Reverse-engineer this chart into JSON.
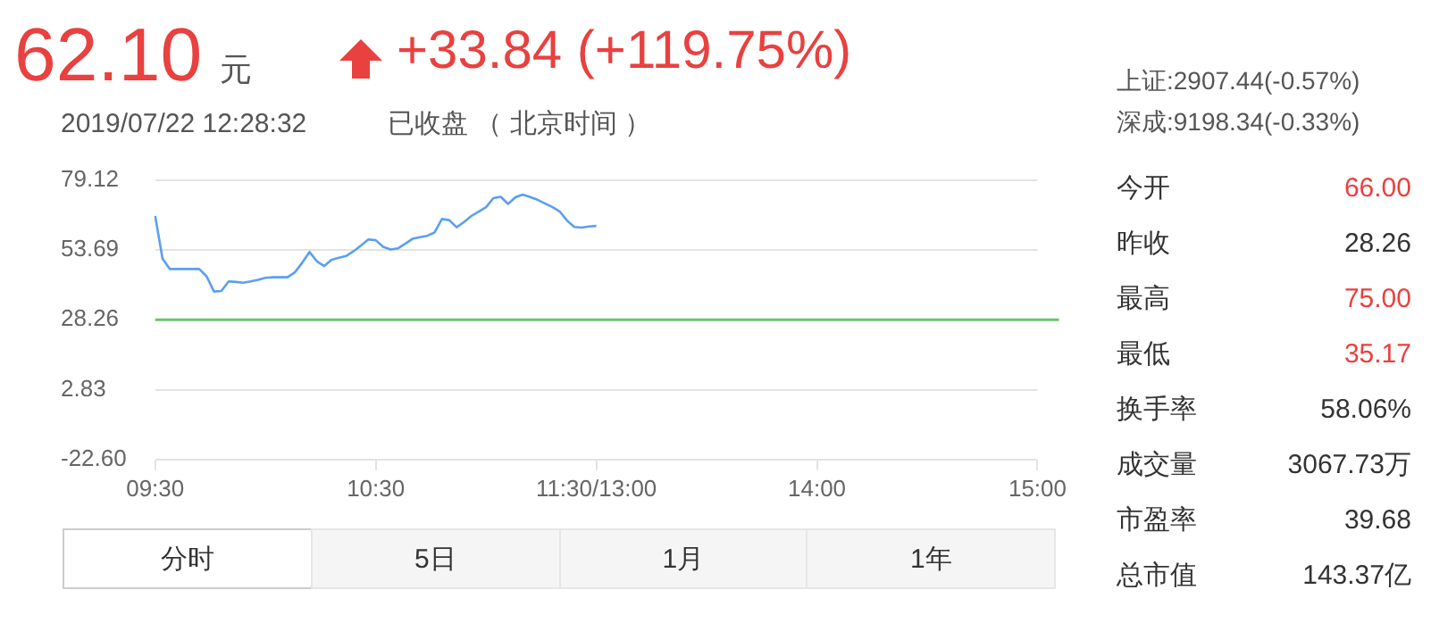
{
  "chart_data": {
    "type": "line",
    "categories": [
      "09:30",
      null,
      null,
      null,
      null,
      null,
      null,
      null,
      null,
      null,
      null,
      null,
      null,
      null,
      null,
      null,
      null,
      null,
      null,
      null,
      null,
      null,
      null,
      null,
      null,
      null,
      null,
      null,
      null,
      null,
      "10:30",
      null,
      null,
      null,
      null,
      null,
      null,
      null,
      null,
      null,
      null,
      null,
      null,
      null,
      null,
      null,
      null,
      null,
      null,
      null,
      null,
      null,
      null,
      null,
      null,
      null,
      null,
      null,
      null,
      null,
      "11:30/13:00",
      null,
      null,
      null,
      null,
      null,
      null,
      null,
      null,
      null,
      null,
      null,
      null,
      null,
      null,
      null,
      null,
      null,
      null,
      null,
      null,
      null,
      null,
      null,
      null,
      null,
      null,
      null,
      null,
      null,
      "14:00",
      null,
      null,
      null,
      null,
      null,
      null,
      null,
      null,
      null,
      null,
      null,
      null,
      null,
      null,
      null,
      null,
      null,
      null,
      null,
      null,
      null,
      null,
      null,
      null,
      null,
      null,
      null,
      null,
      null,
      "15:00"
    ],
    "series": [
      {
        "color": "#5b9ff0",
        "values": [
          66.0,
          50.5,
          46.7,
          46.7,
          46.7,
          46.7,
          46.7,
          44.0,
          38.5,
          38.7,
          42.2,
          42.0,
          41.7,
          42.2,
          42.8,
          43.5,
          43.7,
          43.7,
          43.7,
          45.5,
          49.0,
          52.9,
          49.5,
          47.8,
          50.1,
          50.8,
          51.5,
          53.2,
          55.3,
          57.5,
          57.2,
          54.8,
          53.8,
          54.2,
          55.9,
          57.7,
          58.3,
          58.8,
          60.0,
          64.9,
          64.5,
          61.9,
          63.8,
          66.0,
          67.6,
          69.2,
          72.5,
          73.0,
          70.4,
          72.8,
          73.8,
          72.9,
          71.9,
          70.6,
          69.3,
          67.7,
          64.4,
          62.0,
          61.8,
          62.2,
          62.4,
          null,
          null,
          null,
          null,
          null,
          null,
          null,
          null,
          null,
          null,
          null,
          null,
          null,
          null,
          null,
          null,
          null,
          null,
          null,
          null,
          null,
          null,
          null,
          null,
          null,
          null,
          null,
          null,
          null,
          null,
          null,
          null,
          null,
          null,
          null,
          null,
          null,
          null,
          null,
          null,
          null,
          null,
          null,
          null,
          null,
          null,
          null,
          null,
          null,
          null,
          null,
          null,
          null,
          null,
          null,
          null,
          null,
          null,
          null,
          null
        ]
      }
    ],
    "ylim": [
      -22.6,
      79.12
    ],
    "yticks": [
      79.12,
      53.69,
      28.26,
      2.83,
      {
        "value": -22.6,
        "label": "-22.60"
      }
    ],
    "grid": "y",
    "legend": false,
    "marker": "none",
    "line_style": "solid",
    "ref_lines": [
      {
        "axis": "y",
        "value": 28.26,
        "color": "#6cc36b"
      }
    ],
    "annotations": [
      "62.10",
      "元",
      "+33.84 (+119.75%)",
      "2019/07/22 12:28:32",
      "已收盘 （ 北京时间 ）",
      "上证:2907.44(-0.57%)",
      "深成:9198.34(-0.33%)",
      "今开",
      "66.00",
      "昨收",
      "28.26",
      "最高",
      "75.00",
      "最低",
      "35.17",
      "换手率",
      "58.06%",
      "成交量",
      "3067.73万",
      "市盈率",
      "39.68",
      "总市值",
      "143.37亿",
      "分时",
      "5日",
      "1月",
      "1年"
    ]
  }
}
